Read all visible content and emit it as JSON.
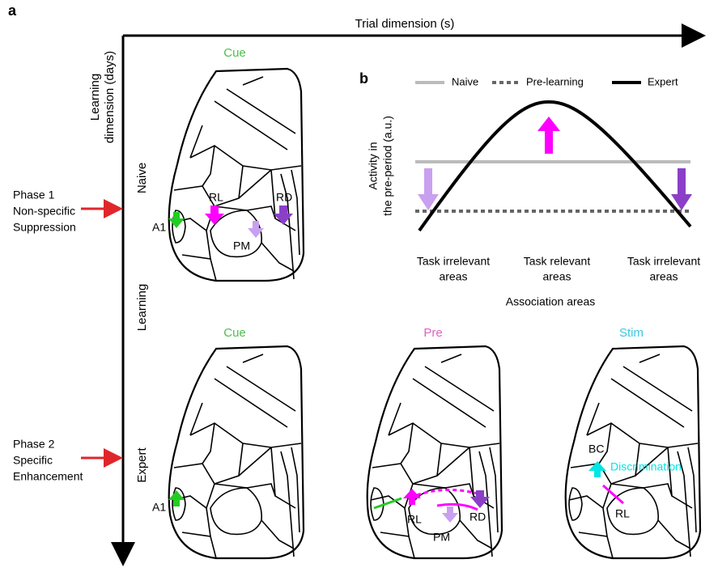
{
  "panel_a": {
    "label": "a",
    "x_axis_label": "Trial dimension (s)",
    "y_axis_label": [
      "Learning",
      "dimension (days)"
    ],
    "learning_label": "Learning",
    "phase1": [
      "Phase 1",
      "Non-specific",
      "Suppression"
    ],
    "phase2": [
      "Phase 2",
      "Specific",
      "Enhancement"
    ],
    "naive": {
      "row_label": "Naive",
      "title": "Cue",
      "areas": [
        "RL",
        "RD",
        "A1",
        "PM"
      ]
    },
    "expert": {
      "row_label": "Expert",
      "cue": {
        "title": "Cue",
        "areas": [
          "A1"
        ]
      },
      "pre": {
        "title": "Pre",
        "areas": [
          "RL",
          "PM",
          "RD"
        ]
      },
      "stim": {
        "title": "Stim",
        "areas": [
          "BC",
          "RL"
        ],
        "annotation": "Discrimination"
      }
    }
  },
  "panel_b": {
    "label": "b",
    "legend": [
      "Naive",
      "Pre-learning",
      "Expert"
    ],
    "y_axis_label": [
      "Activity in",
      "the pre-period (a.u.)"
    ],
    "x_labels": [
      [
        "Task irrelevant",
        "areas"
      ],
      [
        "Task relevant",
        "areas"
      ],
      [
        "Task irrelevant",
        "areas"
      ]
    ],
    "x_axis_label": "Association areas"
  }
}
